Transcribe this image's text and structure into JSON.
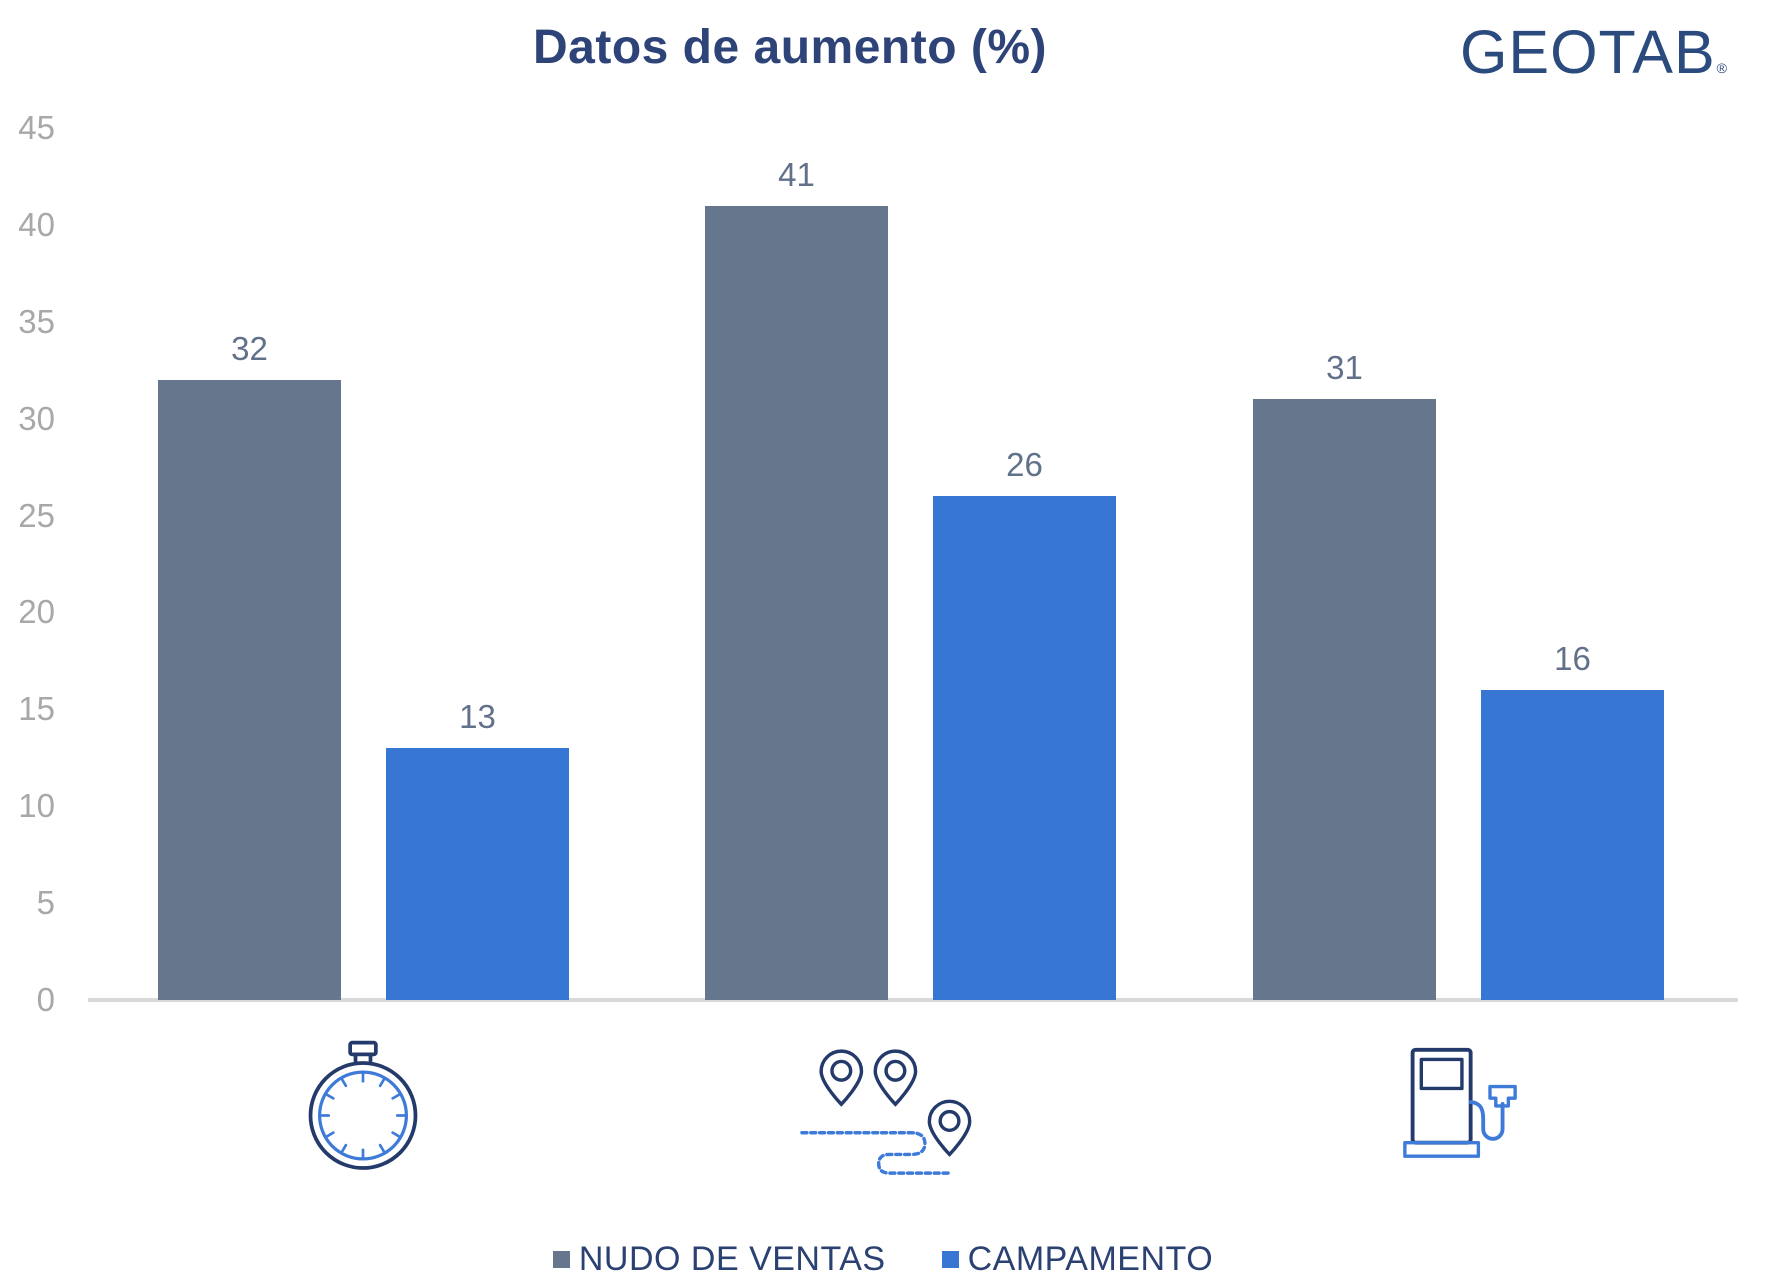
{
  "page": {
    "logo_text": "GEOTAB",
    "logo_mark": "®"
  },
  "chart_data": {
    "type": "bar",
    "title": "Datos de aumento (%)",
    "categories": [
      "stopwatch-icon",
      "route-pins-icon",
      "fuel-pump-icon"
    ],
    "series": [
      {
        "name": "NUDO DE VENTAS",
        "color": "#66768D",
        "values": [
          32,
          41,
          31
        ]
      },
      {
        "name": "CAMPAMENTO",
        "color": "#3776D2",
        "values": [
          13,
          26,
          16
        ]
      }
    ],
    "xlabel": "",
    "ylabel": "",
    "ylim": [
      0,
      45
    ],
    "yticks": [
      0,
      5,
      10,
      15,
      20,
      25,
      30,
      35,
      40,
      45
    ],
    "grid": false,
    "data_labels": true,
    "legend_position": "bottom"
  },
  "colors": {
    "series_gray": "#66768D",
    "series_blue": "#3776D2",
    "title_text": "#2E4377",
    "legend_text": "#2B4172",
    "axis_tick_text": "#A8A8A8",
    "data_label_text": "#61718A",
    "baseline": "#D9D9D9",
    "icon_navy": "#243A6B",
    "icon_blue": "#3E7BD9",
    "logo_navy": "#2B4A7D"
  }
}
